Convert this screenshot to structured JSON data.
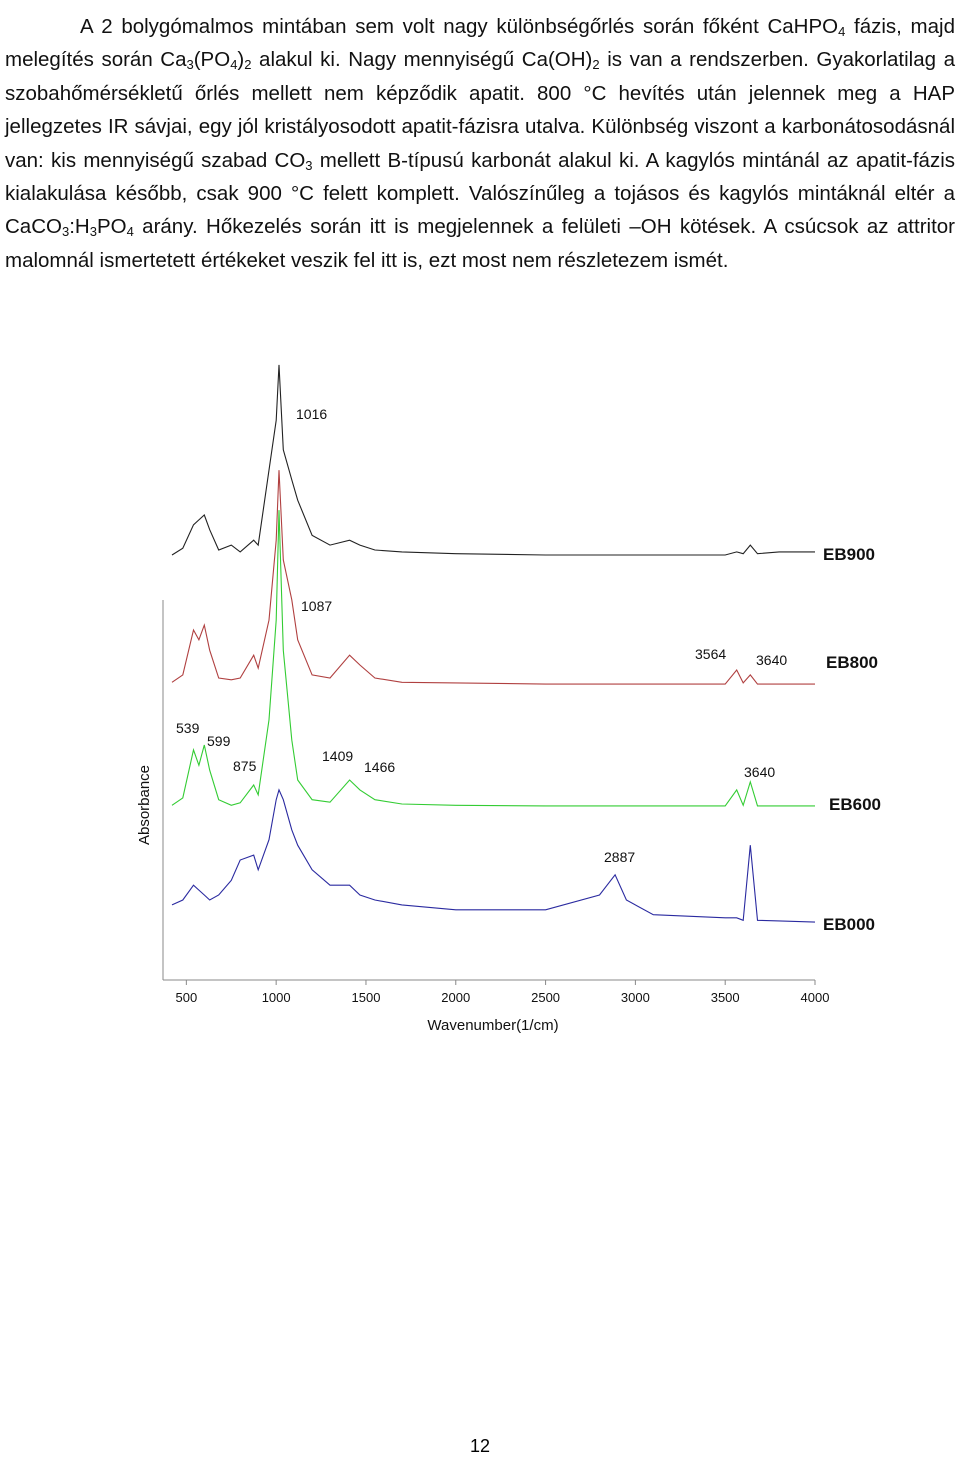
{
  "paragraph": [
    "A 2 bolygómalmos mintában sem volt nagy különbségőrlés során főként CaHPO",
    {
      "sub": "4"
    },
    " fázis, majd melegítés során Ca",
    {
      "sub": "3"
    },
    "(PO",
    {
      "sub": "4"
    },
    ")",
    {
      "sub": "2"
    },
    " alakul ki. Nagy mennyiségű Ca(OH)",
    {
      "sub": "2"
    },
    " is van a rendszerben. Gyakorlatilag a szobahőmérsékletű őrlés mellett nem képződik apatit. 800 °C hevítés után jelennek meg a HAP jellegzetes IR sávjai, egy jól kristályosodott apatit-fázisra utalva. Különbség viszont a karbonátosodásnál van: kis mennyiségű szabad CO",
    {
      "sub": "3"
    },
    " mellett B-típusú karbonát alakul ki. A kagylós mintánál az apatit-fázis kialakulása később, csak 900 °C felett komplett. Valószínűleg a tojásos és kagylós mintáknál eltér a CaCO",
    {
      "sub": "3"
    },
    ":H",
    {
      "sub": "3"
    },
    "PO",
    {
      "sub": "4"
    },
    " arány. Hőkezelés során itt is megjelennek a felületi –OH kötések. A csúcsok az attritor malomnál ismertetett értékeket veszik fel itt is, ezt most nem részletezem ismét."
  ],
  "chart_data": {
    "type": "line",
    "x_label": "Wavenumber(1/cm)",
    "y_label": "Absorbance",
    "xlim": [
      370,
      4000
    ],
    "ylim": [
      0,
      100
    ],
    "xticks": [
      500,
      1000,
      1500,
      2000,
      2500,
      3000,
      3500,
      4000
    ],
    "x": [
      420,
      480,
      540,
      570,
      600,
      630,
      680,
      750,
      800,
      875,
      900,
      960,
      1000,
      1016,
      1040,
      1087,
      1120,
      1200,
      1300,
      1409,
      1466,
      1550,
      1700,
      2000,
      2500,
      2800,
      2887,
      2950,
      3100,
      3500,
      3564,
      3600,
      3640,
      3680,
      3800,
      4000
    ],
    "series": [
      {
        "name": "EB900",
        "color": "#222222",
        "values": [
          68.3,
          69.4,
          73.2,
          74.0,
          74.8,
          72.4,
          69.1,
          69.9,
          68.8,
          70.7,
          69.9,
          82.1,
          90.2,
          99.2,
          85.4,
          80.5,
          77.2,
          71.5,
          69.9,
          70.7,
          69.9,
          69.1,
          68.8,
          68.5,
          68.3,
          68.3,
          68.3,
          68.3,
          68.3,
          68.3,
          68.8,
          68.5,
          69.9,
          68.5,
          68.8,
          68.8
        ]
      },
      {
        "name": "EB800",
        "color": "#b04040",
        "values": [
          47.6,
          48.8,
          56.1,
          54.5,
          56.9,
          52.8,
          48.3,
          48.0,
          48.3,
          52.0,
          49.9,
          57.7,
          70.7,
          82.1,
          67.5,
          61.0,
          54.5,
          48.8,
          48.3,
          52.0,
          50.4,
          48.3,
          47.6,
          47.5,
          47.3,
          47.3,
          47.3,
          47.3,
          47.3,
          47.3,
          49.6,
          47.5,
          48.8,
          47.3,
          47.3,
          47.3
        ]
      },
      {
        "name": "EB600",
        "color": "#33cc33",
        "values": [
          27.6,
          28.8,
          36.6,
          34.1,
          37.4,
          33.3,
          28.5,
          27.6,
          28.0,
          30.9,
          29.3,
          41.5,
          57.7,
          75.6,
          52.8,
          38.2,
          31.7,
          28.5,
          28.1,
          31.7,
          30.1,
          28.5,
          27.8,
          27.6,
          27.5,
          27.5,
          27.5,
          27.5,
          27.5,
          27.5,
          30.1,
          27.6,
          31.4,
          27.5,
          27.5,
          27.5
        ]
      },
      {
        "name": "EB000",
        "color": "#2a2aa0",
        "values": [
          11.4,
          12.2,
          14.6,
          13.8,
          13.0,
          12.2,
          13.0,
          15.4,
          18.7,
          19.5,
          17.1,
          22.0,
          28.5,
          30.1,
          28.5,
          23.6,
          21.1,
          17.1,
          14.6,
          14.6,
          13.0,
          12.2,
          11.4,
          10.6,
          10.6,
          13.0,
          16.3,
          12.2,
          9.8,
          9.3,
          9.3,
          8.9,
          21.1,
          8.9,
          8.8,
          8.6
        ]
      }
    ],
    "annotations": [
      "1016",
      "1087",
      "3564",
      "3640",
      "539",
      "599",
      "875",
      "1409",
      "1466",
      "3640",
      "2887"
    ]
  },
  "page_number": "12"
}
